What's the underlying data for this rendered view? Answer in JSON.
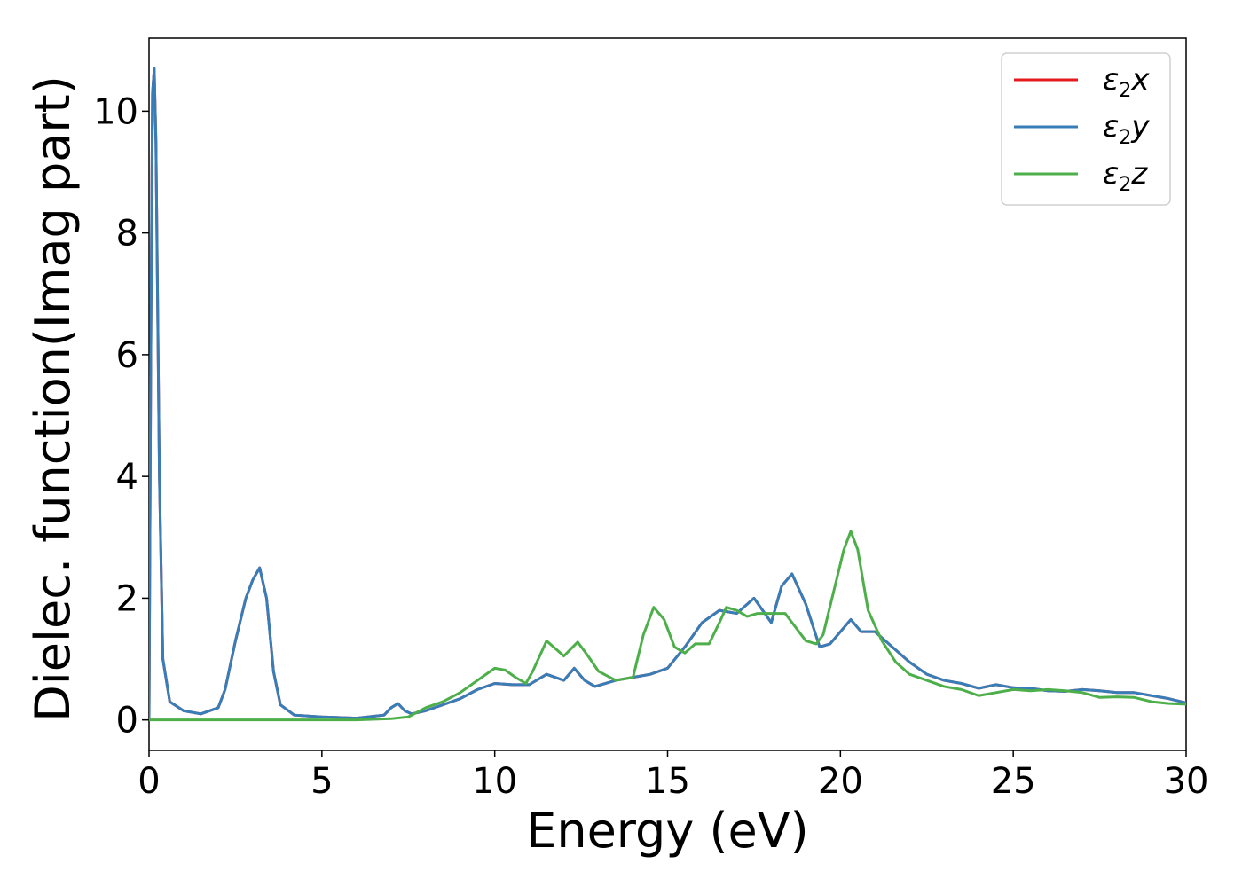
{
  "chart_data": {
    "type": "line",
    "xlabel": "Energy (eV)",
    "ylabel": "Dielec. function(Imag part)",
    "xlim": [
      0,
      30
    ],
    "ylim": [
      -0.5,
      11.2
    ],
    "xticks": [
      0,
      5,
      10,
      15,
      20,
      25,
      30
    ],
    "yticks": [
      0,
      2,
      4,
      6,
      8,
      10
    ],
    "grid": false,
    "legend_position": "top-right",
    "series": [
      {
        "name": "ε2x",
        "legend_base": "ε",
        "legend_sub": "2",
        "legend_var": "x",
        "color": "#e41a1c",
        "points": [
          [
            0,
            0
          ],
          [
            0.05,
            6.0
          ],
          [
            0.1,
            10.3
          ],
          [
            0.15,
            10.7
          ],
          [
            0.2,
            9.5
          ],
          [
            0.3,
            4.0
          ],
          [
            0.4,
            1.0
          ],
          [
            0.6,
            0.3
          ],
          [
            1.0,
            0.15
          ],
          [
            1.5,
            0.1
          ],
          [
            2.0,
            0.2
          ],
          [
            2.2,
            0.5
          ],
          [
            2.5,
            1.3
          ],
          [
            2.8,
            2.0
          ],
          [
            3.0,
            2.3
          ],
          [
            3.2,
            2.5
          ],
          [
            3.4,
            2.0
          ],
          [
            3.6,
            0.8
          ],
          [
            3.8,
            0.25
          ],
          [
            4.2,
            0.08
          ],
          [
            5.0,
            0.05
          ],
          [
            6.0,
            0.03
          ],
          [
            6.8,
            0.08
          ],
          [
            7.0,
            0.2
          ],
          [
            7.2,
            0.27
          ],
          [
            7.4,
            0.15
          ],
          [
            7.6,
            0.1
          ],
          [
            8.0,
            0.15
          ],
          [
            8.5,
            0.25
          ],
          [
            9.0,
            0.35
          ],
          [
            9.5,
            0.5
          ],
          [
            10.0,
            0.6
          ],
          [
            10.5,
            0.58
          ],
          [
            11.0,
            0.58
          ],
          [
            11.5,
            0.75
          ],
          [
            12.0,
            0.65
          ],
          [
            12.3,
            0.85
          ],
          [
            12.6,
            0.65
          ],
          [
            12.9,
            0.55
          ],
          [
            13.5,
            0.65
          ],
          [
            14.0,
            0.7
          ],
          [
            14.5,
            0.75
          ],
          [
            15.0,
            0.85
          ],
          [
            15.5,
            1.2
          ],
          [
            16.0,
            1.6
          ],
          [
            16.5,
            1.8
          ],
          [
            17.0,
            1.75
          ],
          [
            17.5,
            2.0
          ],
          [
            18.0,
            1.6
          ],
          [
            18.3,
            2.2
          ],
          [
            18.6,
            2.4
          ],
          [
            19.0,
            1.9
          ],
          [
            19.4,
            1.2
          ],
          [
            19.7,
            1.25
          ],
          [
            20.0,
            1.45
          ],
          [
            20.3,
            1.65
          ],
          [
            20.6,
            1.45
          ],
          [
            21.0,
            1.45
          ],
          [
            21.5,
            1.2
          ],
          [
            22.0,
            0.95
          ],
          [
            22.5,
            0.75
          ],
          [
            23.0,
            0.65
          ],
          [
            23.5,
            0.6
          ],
          [
            24.0,
            0.52
          ],
          [
            24.5,
            0.58
          ],
          [
            25.0,
            0.53
          ],
          [
            25.5,
            0.52
          ],
          [
            26.0,
            0.48
          ],
          [
            26.5,
            0.47
          ],
          [
            27.0,
            0.5
          ],
          [
            27.5,
            0.48
          ],
          [
            28.0,
            0.45
          ],
          [
            28.5,
            0.45
          ],
          [
            29.0,
            0.4
          ],
          [
            29.5,
            0.35
          ],
          [
            30.0,
            0.28
          ]
        ]
      },
      {
        "name": "ε2y",
        "legend_base": "ε",
        "legend_sub": "2",
        "legend_var": "y",
        "color": "#377eb8",
        "points": [
          [
            0,
            0
          ],
          [
            0.05,
            6.0
          ],
          [
            0.1,
            10.3
          ],
          [
            0.15,
            10.7
          ],
          [
            0.2,
            9.5
          ],
          [
            0.3,
            4.0
          ],
          [
            0.4,
            1.0
          ],
          [
            0.6,
            0.3
          ],
          [
            1.0,
            0.15
          ],
          [
            1.5,
            0.1
          ],
          [
            2.0,
            0.2
          ],
          [
            2.2,
            0.5
          ],
          [
            2.5,
            1.3
          ],
          [
            2.8,
            2.0
          ],
          [
            3.0,
            2.3
          ],
          [
            3.2,
            2.5
          ],
          [
            3.4,
            2.0
          ],
          [
            3.6,
            0.8
          ],
          [
            3.8,
            0.25
          ],
          [
            4.2,
            0.08
          ],
          [
            5.0,
            0.05
          ],
          [
            6.0,
            0.03
          ],
          [
            6.8,
            0.08
          ],
          [
            7.0,
            0.2
          ],
          [
            7.2,
            0.27
          ],
          [
            7.4,
            0.15
          ],
          [
            7.6,
            0.1
          ],
          [
            8.0,
            0.15
          ],
          [
            8.5,
            0.25
          ],
          [
            9.0,
            0.35
          ],
          [
            9.5,
            0.5
          ],
          [
            10.0,
            0.6
          ],
          [
            10.5,
            0.58
          ],
          [
            11.0,
            0.58
          ],
          [
            11.5,
            0.75
          ],
          [
            12.0,
            0.65
          ],
          [
            12.3,
            0.85
          ],
          [
            12.6,
            0.65
          ],
          [
            12.9,
            0.55
          ],
          [
            13.5,
            0.65
          ],
          [
            14.0,
            0.7
          ],
          [
            14.5,
            0.75
          ],
          [
            15.0,
            0.85
          ],
          [
            15.5,
            1.2
          ],
          [
            16.0,
            1.6
          ],
          [
            16.5,
            1.8
          ],
          [
            17.0,
            1.75
          ],
          [
            17.5,
            2.0
          ],
          [
            18.0,
            1.6
          ],
          [
            18.3,
            2.2
          ],
          [
            18.6,
            2.4
          ],
          [
            19.0,
            1.9
          ],
          [
            19.4,
            1.2
          ],
          [
            19.7,
            1.25
          ],
          [
            20.0,
            1.45
          ],
          [
            20.3,
            1.65
          ],
          [
            20.6,
            1.45
          ],
          [
            21.0,
            1.45
          ],
          [
            21.5,
            1.2
          ],
          [
            22.0,
            0.95
          ],
          [
            22.5,
            0.75
          ],
          [
            23.0,
            0.65
          ],
          [
            23.5,
            0.6
          ],
          [
            24.0,
            0.52
          ],
          [
            24.5,
            0.58
          ],
          [
            25.0,
            0.53
          ],
          [
            25.5,
            0.52
          ],
          [
            26.0,
            0.48
          ],
          [
            26.5,
            0.47
          ],
          [
            27.0,
            0.5
          ],
          [
            27.5,
            0.48
          ],
          [
            28.0,
            0.45
          ],
          [
            28.5,
            0.45
          ],
          [
            29.0,
            0.4
          ],
          [
            29.5,
            0.35
          ],
          [
            30.0,
            0.28
          ]
        ]
      },
      {
        "name": "ε2z",
        "legend_base": "ε",
        "legend_sub": "2",
        "legend_var": "z",
        "color": "#4daf4a",
        "points": [
          [
            0,
            0
          ],
          [
            1,
            0
          ],
          [
            2,
            0
          ],
          [
            3,
            0
          ],
          [
            4,
            0
          ],
          [
            5,
            0
          ],
          [
            6,
            0
          ],
          [
            7,
            0.02
          ],
          [
            7.5,
            0.05
          ],
          [
            8.0,
            0.2
          ],
          [
            8.5,
            0.3
          ],
          [
            9.0,
            0.45
          ],
          [
            9.5,
            0.65
          ],
          [
            10.0,
            0.85
          ],
          [
            10.3,
            0.82
          ],
          [
            10.6,
            0.7
          ],
          [
            10.9,
            0.6
          ],
          [
            11.1,
            0.8
          ],
          [
            11.5,
            1.3
          ],
          [
            11.8,
            1.15
          ],
          [
            12.0,
            1.05
          ],
          [
            12.4,
            1.28
          ],
          [
            12.7,
            1.05
          ],
          [
            13.0,
            0.8
          ],
          [
            13.5,
            0.65
          ],
          [
            14.0,
            0.7
          ],
          [
            14.3,
            1.4
          ],
          [
            14.6,
            1.85
          ],
          [
            14.9,
            1.65
          ],
          [
            15.2,
            1.2
          ],
          [
            15.5,
            1.1
          ],
          [
            15.8,
            1.25
          ],
          [
            16.2,
            1.25
          ],
          [
            16.5,
            1.6
          ],
          [
            16.7,
            1.85
          ],
          [
            17.0,
            1.8
          ],
          [
            17.3,
            1.7
          ],
          [
            17.6,
            1.75
          ],
          [
            18.0,
            1.75
          ],
          [
            18.4,
            1.75
          ],
          [
            18.6,
            1.6
          ],
          [
            19.0,
            1.3
          ],
          [
            19.3,
            1.25
          ],
          [
            19.5,
            1.4
          ],
          [
            19.8,
            2.1
          ],
          [
            20.1,
            2.8
          ],
          [
            20.3,
            3.1
          ],
          [
            20.5,
            2.8
          ],
          [
            20.8,
            1.8
          ],
          [
            21.2,
            1.3
          ],
          [
            21.6,
            0.95
          ],
          [
            22.0,
            0.75
          ],
          [
            22.5,
            0.65
          ],
          [
            23.0,
            0.55
          ],
          [
            23.5,
            0.5
          ],
          [
            24.0,
            0.4
          ],
          [
            24.5,
            0.45
          ],
          [
            25.0,
            0.5
          ],
          [
            25.5,
            0.48
          ],
          [
            26.0,
            0.5
          ],
          [
            26.5,
            0.48
          ],
          [
            27.0,
            0.45
          ],
          [
            27.5,
            0.37
          ],
          [
            28.0,
            0.38
          ],
          [
            28.5,
            0.37
          ],
          [
            29.0,
            0.3
          ],
          [
            29.5,
            0.27
          ],
          [
            30.0,
            0.26
          ]
        ]
      }
    ]
  }
}
